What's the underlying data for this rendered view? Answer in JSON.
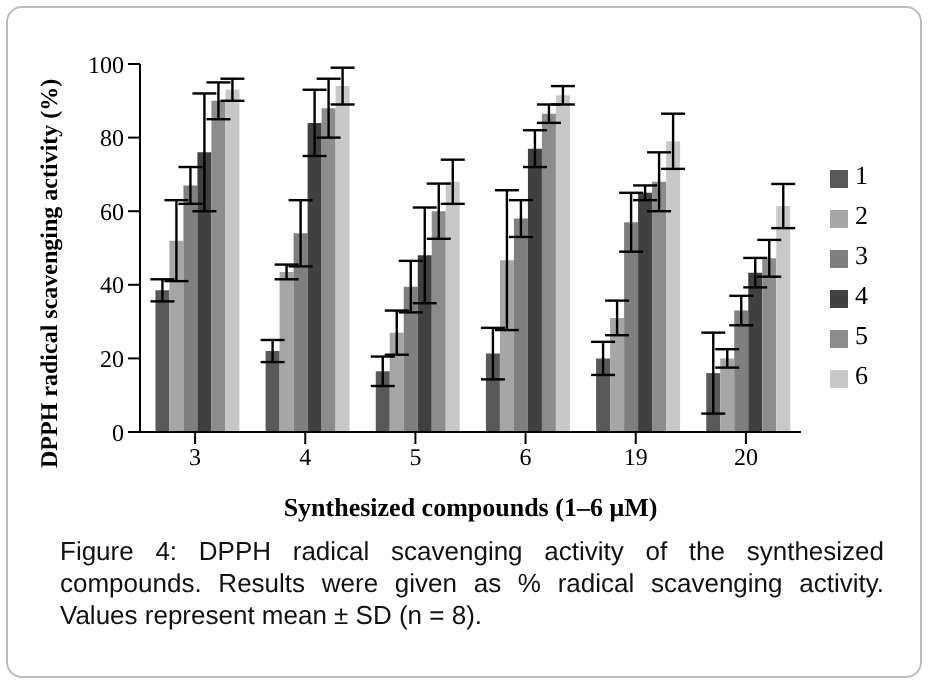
{
  "chart_data": {
    "type": "bar",
    "xlabel": "Synthesized compounds (1–6 μM)",
    "ylabel": "DPPH radical scavenging activity (%)",
    "categories": [
      "3",
      "4",
      "5",
      "6",
      "19",
      "20"
    ],
    "series": [
      {
        "name": "1",
        "color": "#595959",
        "values": [
          38.5,
          22,
          16.5,
          21.3,
          20,
          16
        ],
        "errors": [
          3,
          3,
          4,
          7,
          4.5,
          11
        ]
      },
      {
        "name": "2",
        "color": "#a6a6a6",
        "values": [
          52,
          43.5,
          27,
          46.7,
          31,
          20
        ],
        "errors": [
          11,
          2,
          6,
          19,
          4.7,
          2.5
        ]
      },
      {
        "name": "3",
        "color": "#7f7f7f",
        "values": [
          67,
          54,
          39.5,
          58,
          57,
          33
        ],
        "errors": [
          5,
          9,
          7,
          5,
          8,
          4
        ]
      },
      {
        "name": "4",
        "color": "#404040",
        "values": [
          76,
          84,
          48,
          77,
          65,
          43.3
        ],
        "errors": [
          16,
          9,
          13,
          5,
          2,
          4
        ]
      },
      {
        "name": "5",
        "color": "#8c8c8c",
        "values": [
          90,
          88,
          60,
          86.5,
          68,
          47.2
        ],
        "errors": [
          5,
          8,
          7.5,
          2.5,
          8,
          5
        ]
      },
      {
        "name": "6",
        "color": "#c8c8c8",
        "values": [
          93,
          94,
          68,
          91.5,
          79,
          61.4
        ],
        "errors": [
          3,
          5,
          6,
          2.5,
          7.5,
          6
        ]
      }
    ],
    "ylim": [
      0,
      100
    ],
    "yticks": [
      0,
      20,
      40,
      60,
      80,
      100
    ],
    "grid": false,
    "legend": "right",
    "annotations": [
      "Figure 4: DPPH radical scavenging activity of the synthesized compounds. Results were given as % radical scavenging activity. Values represent mean ± SD (n = 8)."
    ]
  }
}
